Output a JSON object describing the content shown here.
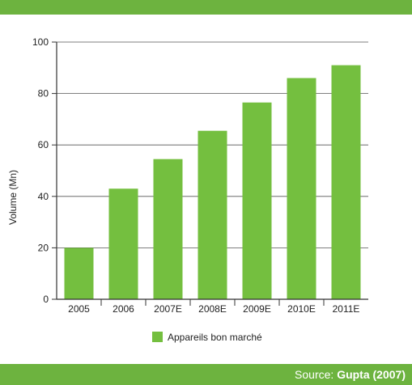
{
  "chart_data": {
    "type": "bar",
    "categories": [
      "2005",
      "2006",
      "2007E",
      "2008E",
      "2009E",
      "2010E",
      "2011E"
    ],
    "series": [
      {
        "name": "Appareils bon marché",
        "values": [
          20,
          43,
          54.5,
          65.5,
          76.5,
          86,
          91
        ]
      }
    ],
    "xlabel": "",
    "ylabel": "Volume (Mn)",
    "ylim": [
      0,
      100
    ],
    "yticks": [
      0,
      20,
      40,
      60,
      80,
      100
    ],
    "grid": true,
    "legend_position": "bottom"
  },
  "colors": {
    "bar": "#74bf3f",
    "band": "#6db33f",
    "grid": "#555555",
    "axis": "#333333"
  },
  "footer": {
    "source_label": "Source:",
    "source_value": "Gupta (2007)"
  }
}
